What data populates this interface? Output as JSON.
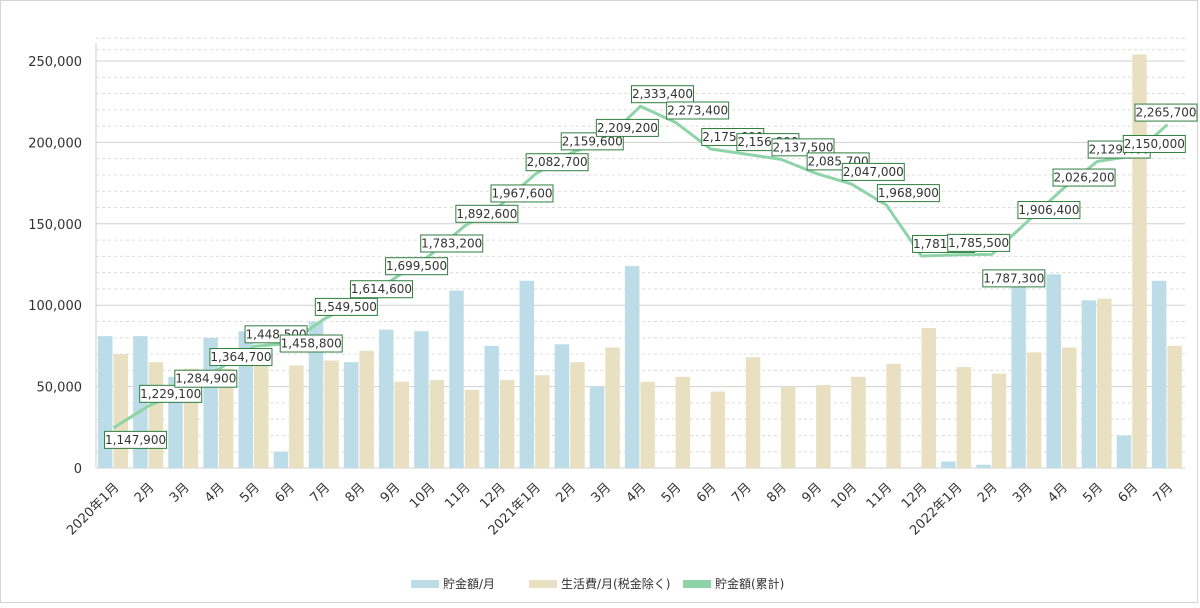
{
  "chart_data": {
    "type": "bar+line",
    "categories": [
      "2020年1月",
      "2月",
      "3月",
      "4月",
      "5月",
      "6月",
      "7月",
      "8月",
      "9月",
      "10月",
      "11月",
      "12月",
      "2021年1月",
      "2月",
      "3月",
      "4月",
      "5月",
      "6月",
      "7月",
      "8月",
      "9月",
      "10月",
      "11月",
      "12月",
      "2022年1月",
      "2月",
      "3月",
      "4月",
      "5月",
      "6月",
      "7月"
    ],
    "ylim": [
      0,
      250000
    ],
    "yticks": [
      "0",
      "50,000",
      "100,000",
      "150,000",
      "200,000",
      "250,000"
    ],
    "series": [
      {
        "name": "貯金額/月",
        "type": "bar",
        "color": "#bcdde8",
        "values": [
          81000,
          81000,
          56000,
          80000,
          84000,
          10000,
          90000,
          65000,
          85000,
          84000,
          109000,
          75000,
          115000,
          76000,
          50000,
          124000,
          0,
          0,
          0,
          0,
          0,
          0,
          0,
          0,
          4000,
          2000,
          118000,
          119000,
          103000,
          20000,
          115000
        ]
      },
      {
        "name": "生活費/月(税金除く)",
        "type": "bar",
        "color": "#e8e0c0",
        "values": [
          70000,
          65000,
          61000,
          61000,
          71000,
          63000,
          66000,
          72000,
          53000,
          54000,
          48000,
          54000,
          57000,
          65000,
          74000,
          53000,
          56000,
          47000,
          68000,
          50000,
          51000,
          56000,
          64000,
          86000,
          62000,
          58000,
          71000,
          74000,
          104000,
          254000,
          75000
        ]
      },
      {
        "name": "貯金額(累計)",
        "type": "line",
        "color": "#8fd4a8",
        "values": [
          1147900,
          1229100,
          1284900,
          1364700,
          1448500,
          1458800,
          1549500,
          1614600,
          1699500,
          1783200,
          1892600,
          1967600,
          2082700,
          2159600,
          2209200,
          2333400,
          2273400,
          2175600,
          2156800,
          2137500,
          2085700,
          2047000,
          1968900,
          1781500,
          1785500,
          1787300,
          1906400,
          2026200,
          2129400,
          2150000,
          2265700
        ],
        "labels": [
          "1,147,900",
          "1,229,100",
          "1,284,900",
          "1,364,700",
          "1,448,500",
          "1,458,800",
          "1,549,500",
          "1,614,600",
          "1,699,500",
          "1,783,200",
          "1,892,600",
          "1,967,600",
          "2,082,700",
          "2,159,600",
          "2,209,200",
          "2,333,400",
          "2,273,400",
          "2,175,600",
          "2,156,800",
          "2,137,500",
          "2,085,700",
          "2,047,000",
          "1,968,900",
          "1,781,500",
          "1,785,500",
          "1,787,300",
          "1,906,400",
          "2,026,200",
          "2,129,400",
          "2,150,000",
          "2,265,700"
        ]
      }
    ],
    "grid": true,
    "legend": "bottom-center"
  },
  "colors": {
    "bar_saving": "#bcdde8",
    "bar_living": "#e8e0c0",
    "line": "#8fd4a8",
    "label_border": "#2e7d3e"
  }
}
